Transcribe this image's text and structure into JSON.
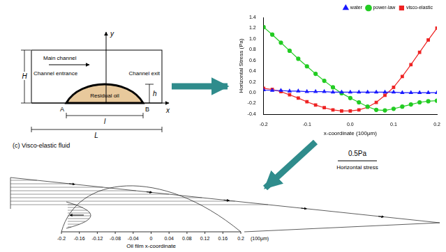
{
  "schematic": {
    "labels": {
      "y_axis": "y",
      "x_axis": "x",
      "height": "H",
      "main_channel": "Main channel",
      "entrance": "Channel entrance",
      "exit": "Channel exit",
      "oil_height": "h",
      "oil": "Residual oil",
      "point_a": "A",
      "point_b": "B",
      "oil_length": "l",
      "channel_length": "L"
    }
  },
  "chart_data": {
    "type": "line",
    "x_label": "x-coordinate (100μm)",
    "y_label": "Horizontal Stress (Pa)",
    "x": [
      -0.2,
      -0.18,
      -0.16,
      -0.14,
      -0.12,
      -0.1,
      -0.08,
      -0.06,
      -0.04,
      -0.02,
      0,
      0.02,
      0.04,
      0.06,
      0.08,
      0.1,
      0.12,
      0.14,
      0.16,
      0.18,
      0.2
    ],
    "series": [
      {
        "name": "water",
        "color": "#1a1aff",
        "marker": "triangle",
        "line_style": "solid",
        "values": [
          0.05,
          0.04,
          0.04,
          0.03,
          0.03,
          0.02,
          0.02,
          0.02,
          0.01,
          0.01,
          0.01,
          0.01,
          0.01,
          0.01,
          0.01,
          0.01,
          0,
          0,
          0,
          0,
          0
        ]
      },
      {
        "name": "power-law",
        "color": "#22cc22",
        "marker": "circle",
        "line_style": "solid",
        "values": [
          1.22,
          1.08,
          0.93,
          0.78,
          0.63,
          0.49,
          0.35,
          0.22,
          0.1,
          -0.01,
          -0.1,
          -0.18,
          -0.26,
          -0.32,
          -0.33,
          -0.3,
          -0.26,
          -0.22,
          -0.18,
          -0.16,
          -0.15
        ]
      },
      {
        "name": "visco-elastic",
        "color": "#ee2222",
        "marker": "square",
        "line_style": "solid",
        "values": [
          0.08,
          0.06,
          0.02,
          -0.04,
          -0.1,
          -0.17,
          -0.23,
          -0.28,
          -0.32,
          -0.34,
          -0.34,
          -0.32,
          -0.27,
          -0.18,
          -0.05,
          0.1,
          0.3,
          0.52,
          0.75,
          0.98,
          1.2
        ]
      }
    ],
    "xlim": [
      -0.2,
      0.2
    ],
    "xticks": [
      -0.2,
      -0.1,
      {
        "value": 0,
        "label": "0.0"
      },
      0.1,
      0.2
    ],
    "ylim": [
      -0.4,
      1.4
    ],
    "yticks": [
      -0.4,
      -0.2,
      {
        "value": 0,
        "label": "0.0"
      },
      0.2,
      0.4,
      0.6,
      0.8,
      {
        "value": 1,
        "label": "1.0"
      },
      1.2,
      1.4
    ],
    "grid": false,
    "legend": "top"
  },
  "scale_bar": {
    "label": "0.5Pa",
    "caption": "Horizontal stress"
  },
  "profile": {
    "title": "(c) Visco-elastic fluid",
    "x_label": "Oil film x-coordinate",
    "x_unit": "(100μm)",
    "xlim": [
      -0.2,
      0.2
    ],
    "xticks": [
      -0.2,
      -0.16,
      -0.12,
      -0.08,
      -0.04,
      0,
      0.04,
      0.08,
      0.12,
      0.16,
      0.2
    ]
  }
}
